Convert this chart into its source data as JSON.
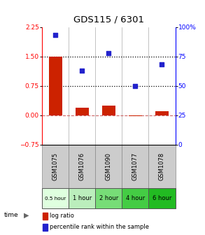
{
  "title": "GDS115 / 6301",
  "categories": [
    "GSM1075",
    "GSM1076",
    "GSM1090",
    "GSM1077",
    "GSM1078"
  ],
  "time_labels": [
    "0.5 hour",
    "1 hour",
    "2 hour",
    "4 hour",
    "6 hour"
  ],
  "time_colors": [
    "#dfffdf",
    "#bbeebc",
    "#77dd77",
    "#44cc44",
    "#22bb22"
  ],
  "log_ratio": [
    1.5,
    0.2,
    0.25,
    -0.02,
    0.1
  ],
  "percentile": [
    93,
    63,
    78,
    50,
    68
  ],
  "bar_color": "#cc2200",
  "dot_color": "#2222cc",
  "ylim_left": [
    -0.75,
    2.25
  ],
  "ylim_right": [
    0,
    100
  ],
  "yticks_left": [
    -0.75,
    0,
    0.75,
    1.5,
    2.25
  ],
  "yticks_right": [
    0,
    25,
    50,
    75,
    100
  ],
  "hline_y": [
    0.75,
    1.5
  ],
  "zero_line_y": 0,
  "cell_color": "#cccccc",
  "legend_bar_color": "#cc2200",
  "legend_dot_color": "#2222cc"
}
